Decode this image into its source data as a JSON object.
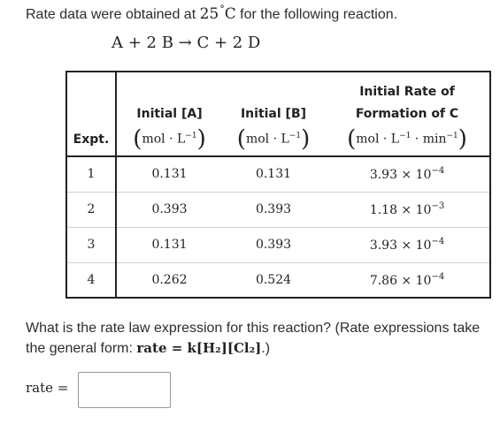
{
  "intro": {
    "before": "Rate data were obtained at ",
    "temperature": "25",
    "degree": "°",
    "unit": "C",
    "after": " for the following reaction."
  },
  "equation": "A + 2 B → C + 2 D",
  "table": {
    "headers": {
      "expt": "Expt.",
      "a_title": "Initial [A]",
      "a_unit_base": "mol · L",
      "a_unit_exp": "−1",
      "b_title": "Initial [B]",
      "b_unit_base": "mol · L",
      "b_unit_exp": "−1",
      "rate_line1": "Initial Rate of",
      "rate_line2": "Formation of C",
      "rate_unit_base1": "mol · L",
      "rate_unit_exp1": "−1",
      "rate_unit_base2": " · min",
      "rate_unit_exp2": "−1"
    },
    "rows": [
      {
        "expt": "1",
        "a": "0.131",
        "b": "0.131",
        "rate_mantissa": "3.93 × 10",
        "rate_exp": "−4"
      },
      {
        "expt": "2",
        "a": "0.393",
        "b": "0.393",
        "rate_mantissa": "1.18 × 10",
        "rate_exp": "−3"
      },
      {
        "expt": "3",
        "a": "0.131",
        "b": "0.393",
        "rate_mantissa": "3.93 × 10",
        "rate_exp": "−4"
      },
      {
        "expt": "4",
        "a": "0.262",
        "b": "0.524",
        "rate_mantissa": "7.86 × 10",
        "rate_exp": "−4"
      }
    ]
  },
  "question": {
    "text": "What is the rate law expression for this reaction? (Rate expressions take the general form: ",
    "formula": "rate = k[H₂][Cl₂]",
    "end": ".)"
  },
  "answer": {
    "label": "rate =",
    "value": "",
    "placeholder": ""
  }
}
